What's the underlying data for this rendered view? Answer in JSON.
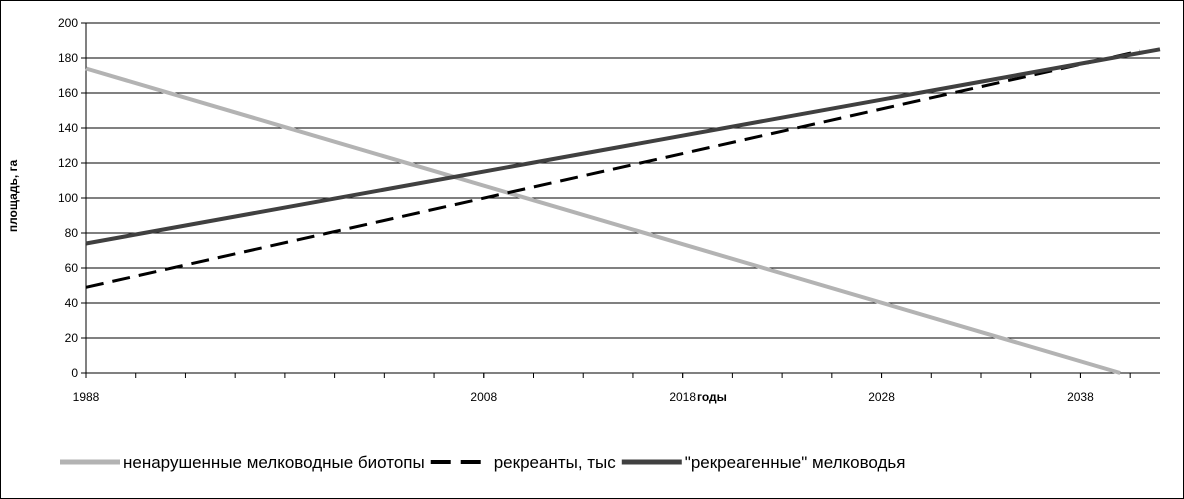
{
  "chart_data": {
    "type": "line",
    "title": "",
    "xlabel": "годы",
    "ylabel": "площадь, га",
    "xlim": [
      1988,
      2042
    ],
    "ylim": [
      0,
      200
    ],
    "x_ticks": [
      1988,
      2008,
      2018,
      2028,
      2038
    ],
    "y_ticks": [
      0,
      20,
      40,
      60,
      80,
      100,
      120,
      140,
      160,
      180,
      200
    ],
    "grid": "horizontal",
    "legend_position": "bottom",
    "series": [
      {
        "name": "ненарушенные мелководные биотопы",
        "color": "#b3b3b3",
        "style": "solid",
        "points": [
          [
            1988,
            174
          ],
          [
            2040,
            0
          ]
        ]
      },
      {
        "name": "рекреанты, тыс",
        "color": "#000000",
        "style": "dashed",
        "points": [
          [
            1988,
            49
          ],
          [
            2041,
            184
          ]
        ]
      },
      {
        "name": "\"рекреагенные\" мелководья",
        "color": "#404040",
        "style": "solid",
        "points": [
          [
            1988,
            74
          ],
          [
            2042,
            185
          ]
        ]
      }
    ]
  }
}
